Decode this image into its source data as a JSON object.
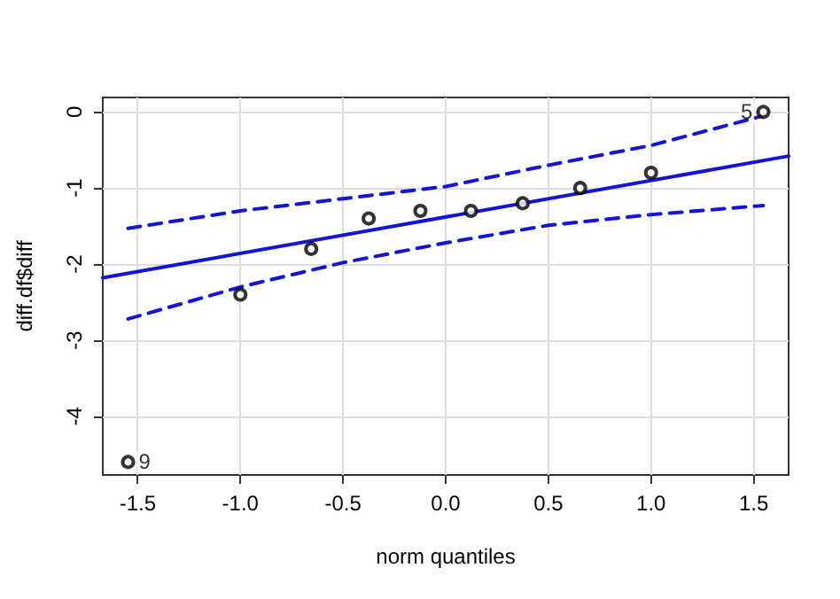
{
  "chart_data": {
    "type": "scatter",
    "xlabel": "norm quantiles",
    "ylabel": "diff.df$diff",
    "xlim": [
      -1.67,
      1.67
    ],
    "ylim": [
      -4.77,
      0.19
    ],
    "xticks": [
      {
        "value": -1.5,
        "label": "-1.5"
      },
      {
        "value": -1,
        "label": "-1.0"
      },
      {
        "value": -0.5,
        "label": "-0.5"
      },
      {
        "value": 0,
        "label": "0.0"
      },
      {
        "value": 0.5,
        "label": "0.5"
      },
      {
        "value": 1,
        "label": "1.0"
      },
      {
        "value": 1.5,
        "label": "1.5"
      }
    ],
    "yticks": [
      -4,
      -3,
      -2,
      -1,
      0
    ],
    "grid": true,
    "series": [
      {
        "marker": "circle",
        "color": "#000000",
        "x": [
          -1.547,
          -1.0,
          -0.655,
          -0.375,
          -0.123,
          0.123,
          0.375,
          0.655,
          1.0,
          1.547
        ],
        "values": [
          -4.6,
          -2.4,
          -1.8,
          -1.4,
          -1.3,
          -1.3,
          -1.2,
          -1.0,
          -0.8,
          0.0
        ]
      },
      {
        "type": "line",
        "marker": "none",
        "line_style": "solid",
        "color": "#1414d8",
        "x": [
          -1.67,
          1.67
        ],
        "values": [
          -2.18,
          -0.58
        ]
      },
      {
        "type": "line",
        "marker": "none",
        "line_style": "dashed",
        "color": "#1414d8",
        "x": [
          -1.547,
          -1.0,
          -0.5,
          0,
          0.5,
          1.0,
          1.547
        ],
        "values": [
          -1.53,
          -1.3,
          -1.14,
          -0.98,
          -0.7,
          -0.44,
          -0.05
        ]
      },
      {
        "type": "line",
        "marker": "none",
        "line_style": "dashed",
        "color": "#1414d8",
        "x": [
          -1.547,
          -1.0,
          -0.5,
          0,
          0.5,
          1.0,
          1.547
        ],
        "values": [
          -2.72,
          -2.3,
          -1.98,
          -1.72,
          -1.49,
          -1.35,
          -1.23
        ]
      }
    ],
    "annotations": [
      {
        "text": "9",
        "x": -1.547,
        "y": -4.6
      },
      {
        "text": "5",
        "x": 1.547,
        "y": 0
      }
    ]
  }
}
